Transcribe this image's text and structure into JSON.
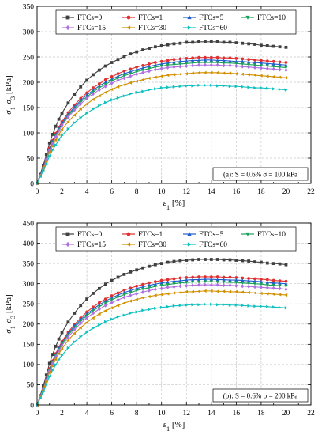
{
  "chart_data": [
    {
      "type": "line",
      "xlabel": "ε1 [%]",
      "ylabel": "σ1-σ3 [kPa]",
      "xlim": [
        0,
        22
      ],
      "ylim": [
        0,
        350
      ],
      "xticks": [
        0,
        2,
        4,
        6,
        8,
        10,
        12,
        14,
        16,
        18,
        20,
        22
      ],
      "yticks": [
        0,
        50,
        100,
        150,
        200,
        250,
        300,
        350
      ],
      "grid": true,
      "legend_position": "top",
      "annotation": "(a): S = 0.6%   σ = 100 kPa",
      "x": [
        0,
        0.25,
        0.5,
        0.75,
        1,
        1.25,
        1.5,
        1.75,
        2,
        2.5,
        3,
        3.5,
        4,
        4.5,
        5,
        5.5,
        6,
        6.5,
        7,
        7.5,
        8,
        8.5,
        9,
        9.5,
        10,
        10.5,
        11,
        11.5,
        12,
        12.5,
        13,
        13.5,
        14,
        14.5,
        15,
        15.5,
        16,
        16.5,
        17,
        17.5,
        18,
        18.5,
        19,
        19.5,
        20
      ],
      "series": [
        {
          "name": "FTCs=0",
          "color": "#404040",
          "marker": "square",
          "values": [
            0,
            18,
            36,
            57,
            80,
            97,
            113,
            127,
            139,
            159,
            176,
            191,
            204,
            215,
            224,
            232,
            239,
            245,
            251,
            256,
            260,
            264,
            267,
            270,
            272,
            274,
            276,
            277,
            279,
            279,
            280,
            280,
            280,
            280,
            279,
            279,
            278,
            277,
            276,
            275,
            273,
            272,
            271,
            270,
            269
          ]
        },
        {
          "name": "FTCs=1",
          "color": "#e03030",
          "marker": "circle",
          "values": [
            0,
            16,
            32,
            50,
            70,
            85,
            99,
            111,
            122,
            140,
            155,
            168,
            179,
            189,
            197,
            205,
            211,
            217,
            222,
            226,
            230,
            233,
            236,
            239,
            241,
            243,
            245,
            246,
            247,
            248,
            249,
            249,
            249,
            249,
            248,
            248,
            247,
            246,
            245,
            244,
            243,
            242,
            241,
            240,
            239
          ]
        },
        {
          "name": "FTCs=5",
          "color": "#1f5fd0",
          "marker": "triangle-up",
          "values": [
            0,
            16,
            31,
            49,
            68,
            83,
            96,
            108,
            119,
            136,
            151,
            164,
            175,
            184,
            193,
            200,
            206,
            212,
            217,
            221,
            225,
            228,
            231,
            234,
            236,
            238,
            240,
            241,
            242,
            243,
            243,
            244,
            244,
            243,
            243,
            242,
            241,
            241,
            240,
            239,
            238,
            237,
            236,
            235,
            234
          ]
        },
        {
          "name": "FTCs=10",
          "color": "#1aa05a",
          "marker": "triangle-down",
          "values": [
            0,
            15,
            30,
            48,
            66,
            81,
            94,
            106,
            117,
            134,
            148,
            161,
            171,
            181,
            189,
            196,
            203,
            208,
            213,
            217,
            221,
            224,
            227,
            230,
            232,
            234,
            235,
            236,
            237,
            238,
            239,
            239,
            239,
            239,
            238,
            238,
            237,
            236,
            235,
            234,
            233,
            232,
            231,
            230,
            229
          ]
        },
        {
          "name": "FTCs=15",
          "color": "#b070e0",
          "marker": "diamond",
          "values": [
            0,
            15,
            30,
            47,
            65,
            79,
            92,
            104,
            115,
            131,
            145,
            157,
            168,
            177,
            185,
            192,
            198,
            204,
            208,
            212,
            216,
            219,
            222,
            225,
            227,
            229,
            230,
            231,
            232,
            233,
            234,
            234,
            234,
            234,
            233,
            233,
            232,
            231,
            230,
            229,
            228,
            227,
            226,
            225,
            224
          ]
        },
        {
          "name": "FTCs=30",
          "color": "#d09000",
          "marker": "triangle-left",
          "values": [
            0,
            14,
            28,
            44,
            61,
            74,
            86,
            97,
            107,
            122,
            135,
            147,
            157,
            166,
            173,
            180,
            186,
            191,
            195,
            199,
            202,
            205,
            208,
            210,
            212,
            214,
            215,
            216,
            217,
            218,
            219,
            219,
            219,
            219,
            218,
            218,
            217,
            216,
            215,
            214,
            213,
            212,
            211,
            210,
            209
          ]
        },
        {
          "name": "FTCs=60",
          "color": "#10c0c0",
          "marker": "triangle-right",
          "values": [
            0,
            13,
            25,
            39,
            54,
            66,
            76,
            86,
            95,
            108,
            120,
            130,
            139,
            147,
            154,
            160,
            165,
            169,
            173,
            177,
            180,
            182,
            185,
            187,
            189,
            190,
            191,
            192,
            193,
            193,
            194,
            194,
            194,
            193,
            193,
            192,
            192,
            191,
            190,
            189,
            189,
            188,
            187,
            186,
            185
          ]
        }
      ]
    },
    {
      "type": "line",
      "xlabel": "ε1 [%]",
      "ylabel": "σ1-σ3 [kPa]",
      "xlim": [
        0,
        22
      ],
      "ylim": [
        0,
        450
      ],
      "xticks": [
        0,
        2,
        4,
        6,
        8,
        10,
        12,
        14,
        16,
        18,
        20,
        22
      ],
      "yticks": [
        0,
        50,
        100,
        150,
        200,
        250,
        300,
        350,
        400,
        450
      ],
      "grid": true,
      "legend_position": "top",
      "annotation": "(b): S = 0.6%   σ = 200 kPa",
      "x": [
        0,
        0.25,
        0.5,
        0.75,
        1,
        1.25,
        1.5,
        1.75,
        2,
        2.5,
        3,
        3.5,
        4,
        4.5,
        5,
        5.5,
        6,
        6.5,
        7,
        7.5,
        8,
        8.5,
        9,
        9.5,
        10,
        10.5,
        11,
        11.5,
        12,
        12.5,
        13,
        13.5,
        14,
        14.5,
        15,
        15.5,
        16,
        16.5,
        17,
        17.5,
        18,
        18.5,
        19,
        19.5,
        20
      ],
      "series": [
        {
          "name": "FTCs=0",
          "color": "#404040",
          "marker": "square",
          "values": [
            0,
            23,
            47,
            74,
            103,
            125,
            145,
            163,
            179,
            205,
            227,
            246,
            262,
            276,
            288,
            299,
            308,
            316,
            323,
            329,
            334,
            339,
            343,
            347,
            350,
            353,
            355,
            357,
            358,
            359,
            360,
            360,
            360,
            360,
            359,
            359,
            358,
            357,
            356,
            354,
            353,
            351,
            350,
            349,
            347
          ]
        },
        {
          "name": "FTCs=1",
          "color": "#e03030",
          "marker": "circle",
          "values": [
            0,
            21,
            41,
            65,
            90,
            109,
            127,
            143,
            157,
            180,
            199,
            215,
            230,
            242,
            253,
            262,
            270,
            277,
            284,
            289,
            294,
            298,
            302,
            305,
            308,
            310,
            312,
            314,
            315,
            316,
            317,
            317,
            317,
            317,
            316,
            316,
            315,
            314,
            313,
            312,
            311,
            310,
            308,
            307,
            306
          ]
        },
        {
          "name": "FTCs=5",
          "color": "#1f5fd0",
          "marker": "triangle-up",
          "values": [
            0,
            20,
            40,
            64,
            88,
            107,
            124,
            140,
            153,
            176,
            195,
            211,
            225,
            237,
            248,
            257,
            265,
            272,
            278,
            283,
            288,
            292,
            296,
            299,
            302,
            304,
            306,
            307,
            309,
            310,
            310,
            311,
            311,
            310,
            310,
            309,
            309,
            308,
            307,
            306,
            305,
            303,
            302,
            301,
            300
          ]
        },
        {
          "name": "FTCs=10",
          "color": "#1aa05a",
          "marker": "triangle-down",
          "values": [
            0,
            20,
            40,
            62,
            86,
            105,
            122,
            137,
            151,
            173,
            191,
            207,
            221,
            233,
            243,
            252,
            260,
            267,
            273,
            278,
            283,
            287,
            290,
            293,
            296,
            298,
            300,
            302,
            303,
            304,
            304,
            305,
            305,
            304,
            304,
            303,
            303,
            302,
            301,
            300,
            299,
            297,
            296,
            295,
            294
          ]
        },
        {
          "name": "FTCs=15",
          "color": "#b070e0",
          "marker": "diamond",
          "values": [
            0,
            20,
            39,
            61,
            84,
            102,
            119,
            134,
            147,
            168,
            186,
            202,
            215,
            227,
            237,
            246,
            253,
            260,
            266,
            271,
            275,
            279,
            283,
            286,
            288,
            291,
            292,
            294,
            295,
            296,
            297,
            297,
            297,
            297,
            296,
            296,
            295,
            294,
            293,
            292,
            291,
            290,
            289,
            288,
            286
          ]
        },
        {
          "name": "FTCs=30",
          "color": "#d09000",
          "marker": "triangle-left",
          "values": [
            0,
            18,
            37,
            58,
            80,
            97,
            113,
            127,
            139,
            160,
            177,
            191,
            204,
            215,
            225,
            233,
            240,
            246,
            252,
            257,
            261,
            265,
            268,
            271,
            273,
            275,
            277,
            278,
            280,
            280,
            281,
            282,
            282,
            281,
            281,
            280,
            280,
            279,
            278,
            277,
            276,
            275,
            274,
            273,
            272
          ]
        },
        {
          "name": "FTCs=60",
          "color": "#10c0c0",
          "marker": "triangle-right",
          "values": [
            0,
            16,
            32,
            51,
            70,
            86,
            99,
            112,
            123,
            141,
            156,
            169,
            180,
            190,
            198,
            206,
            212,
            218,
            222,
            227,
            230,
            234,
            236,
            239,
            241,
            243,
            245,
            246,
            247,
            248,
            248,
            249,
            249,
            248,
            248,
            247,
            247,
            246,
            245,
            244,
            244,
            243,
            242,
            241,
            240
          ]
        }
      ]
    }
  ]
}
